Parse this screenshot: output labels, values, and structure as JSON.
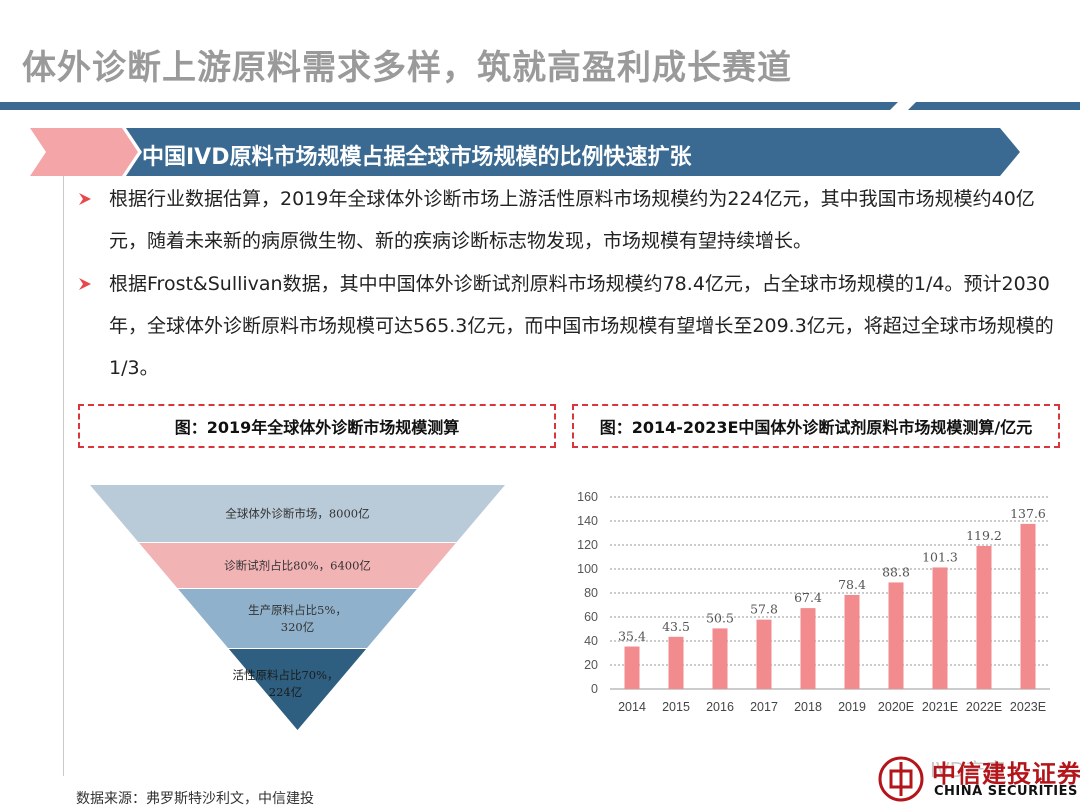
{
  "page": {
    "title": "体外诊断上游原料需求多样，筑就高盈利成长赛道",
    "section_heading": "中国IVD原料市场规模占据全球市场规模的比例快速扩张",
    "bullets": [
      "根据行业数据估算，2019年全球体外诊断市场上游活性原料市场规模约为224亿元，其中我国市场规模约40亿元，随着未来新的病原微生物、新的疾病诊断标志物发现，市场规模有望持续增长。",
      "根据Frost&Sullivan数据，其中中国体外诊断试剂原料市场规模约78.4亿元，占全球市场规模的1/4。预计2030年，全球体外诊断原料市场规模可达565.3亿元，而中国市场规模有望增长至209.3亿元，将超过全球市场规模的1/3。"
    ],
    "source": "数据来源：弗罗斯特沙利文，中信建投",
    "watermark": "IVD产库",
    "logo": {
      "cn": "中信建投证券",
      "en": "CHINA SECURITIES"
    },
    "colors": {
      "accent_red": "#e8474b",
      "banner_blue": "#3a6a92",
      "banner_pink": "#f3a5a8",
      "bar": "#f28b8e"
    }
  },
  "funnel": {
    "caption": "图：2019年全球体外诊断市场规模测算",
    "levels": [
      {
        "label_lines": [
          "全球体外诊断市场，8000亿"
        ],
        "color": "#b9cad8"
      },
      {
        "label_lines": [
          "诊断试剂占比80%，6400亿"
        ],
        "color": "#f2b3b5"
      },
      {
        "label_lines": [
          "生产原料占比5%，",
          "320亿"
        ],
        "color": "#8fb1cb"
      },
      {
        "label_lines": [
          "活性原料占比70%，",
          "224亿"
        ],
        "color": "#2e5f80"
      }
    ]
  },
  "chart_data": {
    "type": "bar",
    "title": "图：2014-2023E中国体外诊断试剂原料市场规模测算/亿元",
    "categories": [
      "2014",
      "2015",
      "2016",
      "2017",
      "2018",
      "2019",
      "2020E",
      "2021E",
      "2022E",
      "2023E"
    ],
    "values": [
      35.4,
      43.5,
      50.5,
      57.8,
      67.4,
      78.4,
      88.8,
      101.3,
      119.2,
      137.6
    ],
    "value_labels": [
      "35.4",
      "43.5",
      "50.5",
      "57.8",
      "67.4",
      "78.4",
      "88.8",
      "101.3",
      "119.2",
      "137.6"
    ],
    "ylim": [
      0,
      160
    ],
    "yticks": [
      "0",
      "20",
      "40",
      "60",
      "80",
      "100",
      "120",
      "140",
      "160"
    ],
    "grid": true,
    "bar_color": "#f28b8e"
  }
}
